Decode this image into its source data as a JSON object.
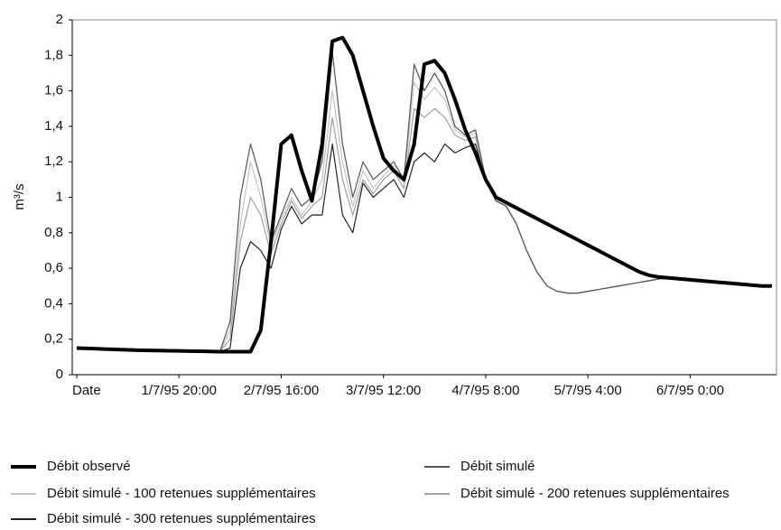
{
  "chart_data": {
    "type": "line",
    "y_label": "m³/s",
    "categories": [
      "Date",
      null,
      null,
      null,
      null,
      null,
      null,
      null,
      null,
      null,
      "1/7/95 20:00",
      null,
      null,
      null,
      null,
      null,
      null,
      null,
      null,
      null,
      "2/7/95 16:00",
      null,
      null,
      null,
      null,
      null,
      null,
      null,
      null,
      null,
      "3/7/95 12:00",
      null,
      null,
      null,
      null,
      null,
      null,
      null,
      null,
      null,
      "4/7/95 8:00",
      null,
      null,
      null,
      null,
      null,
      null,
      null,
      null,
      null,
      "5/7/95 4:00",
      null,
      null,
      null,
      null,
      null,
      null,
      null,
      null,
      null,
      "6/7/95 0:00",
      null,
      null,
      null,
      null,
      null,
      null,
      null,
      null
    ],
    "ylim": [
      0,
      2
    ],
    "yticks": [
      0,
      {
        "value": 0.2,
        "label": "0,2"
      },
      {
        "value": 0.4,
        "label": "0,4"
      },
      {
        "value": 0.6,
        "label": "0,6"
      },
      {
        "value": 0.8,
        "label": "0,8"
      },
      1,
      {
        "value": 1.2,
        "label": "1,2"
      },
      {
        "value": 1.4,
        "label": "1,4"
      },
      {
        "value": 1.6,
        "label": "1,6"
      },
      {
        "value": 1.8,
        "label": "1,8"
      },
      2
    ],
    "grid": false,
    "series": [
      {
        "name": "Débit observé",
        "color": "#000000",
        "width": 4,
        "values": [
          0.15,
          0.148,
          0.146,
          0.144,
          0.142,
          0.14,
          0.138,
          0.137,
          0.136,
          0.135,
          0.134,
          0.133,
          0.132,
          0.131,
          0.13,
          0.13,
          0.13,
          0.13,
          0.25,
          0.75,
          1.3,
          1.35,
          1.15,
          0.98,
          1.3,
          1.88,
          1.9,
          1.8,
          1.6,
          1.4,
          1.22,
          1.15,
          1.1,
          1.3,
          1.75,
          1.77,
          1.7,
          1.55,
          1.38,
          1.25,
          1.1,
          1.0,
          0.97,
          0.94,
          0.91,
          0.88,
          0.85,
          0.82,
          0.79,
          0.76,
          0.73,
          0.7,
          0.67,
          0.64,
          0.61,
          0.58,
          0.56,
          0.55,
          0.545,
          0.54,
          0.535,
          0.53,
          0.525,
          0.52,
          0.515,
          0.51,
          0.505,
          0.5,
          0.5
        ]
      },
      {
        "name": "Débit simulé",
        "color": "#555555",
        "width": 1.2,
        "values": [
          0.15,
          0.148,
          0.146,
          0.144,
          0.142,
          0.14,
          0.138,
          0.137,
          0.136,
          0.135,
          0.134,
          0.133,
          0.132,
          0.131,
          0.13,
          0.3,
          1.0,
          1.3,
          1.1,
          0.75,
          0.9,
          1.05,
          0.95,
          1.0,
          1.2,
          1.82,
          1.3,
          1.0,
          1.2,
          1.1,
          1.15,
          1.2,
          1.1,
          1.75,
          1.6,
          1.7,
          1.6,
          1.4,
          1.35,
          1.38,
          1.1,
          0.98,
          0.95,
          0.85,
          0.7,
          0.58,
          0.5,
          0.47,
          0.46,
          0.46,
          0.47,
          0.48,
          0.49,
          0.5,
          0.51,
          0.52,
          0.53,
          0.54,
          0.545,
          0.54,
          0.535,
          0.53,
          0.525,
          0.52,
          0.515,
          0.51,
          0.505,
          0.5,
          0.5
        ]
      },
      {
        "name": "Débit simulé - 100 retenues supplémentaires",
        "color": "#c4c4c4",
        "width": 1.2,
        "values": [
          0.15,
          0.148,
          0.146,
          0.144,
          0.142,
          0.14,
          0.138,
          0.137,
          0.136,
          0.135,
          0.134,
          0.133,
          0.132,
          0.131,
          0.13,
          0.25,
          0.85,
          1.2,
          1.0,
          0.72,
          0.88,
          1.0,
          0.9,
          0.98,
          1.1,
          1.6,
          1.2,
          0.95,
          1.15,
          1.05,
          1.12,
          1.18,
          1.08,
          1.65,
          1.55,
          1.62,
          1.55,
          1.38,
          1.34,
          1.36,
          1.1,
          0.98,
          0.95,
          0.85,
          0.7,
          0.58,
          0.5,
          0.47,
          0.46,
          0.46,
          0.47,
          0.48,
          0.49,
          0.5,
          0.51,
          0.52,
          0.53,
          0.54,
          0.545,
          0.54,
          0.535,
          0.53,
          0.525,
          0.52,
          0.515,
          0.51,
          0.505,
          0.5,
          0.5
        ]
      },
      {
        "name": "Débit simulé - 200 retenues supplémentaires",
        "color": "#a0a0a0",
        "width": 1.2,
        "values": [
          0.15,
          0.148,
          0.146,
          0.144,
          0.142,
          0.14,
          0.138,
          0.137,
          0.136,
          0.135,
          0.134,
          0.133,
          0.132,
          0.131,
          0.13,
          0.2,
          0.75,
          1.0,
          0.9,
          0.68,
          0.85,
          0.98,
          0.88,
          0.95,
          1.0,
          1.45,
          1.1,
          0.9,
          1.1,
          1.02,
          1.1,
          1.15,
          1.05,
          1.5,
          1.45,
          1.5,
          1.45,
          1.35,
          1.32,
          1.34,
          1.1,
          0.98,
          0.95,
          0.85,
          0.7,
          0.58,
          0.5,
          0.47,
          0.46,
          0.46,
          0.47,
          0.48,
          0.49,
          0.5,
          0.51,
          0.52,
          0.53,
          0.54,
          0.545,
          0.54,
          0.535,
          0.53,
          0.525,
          0.52,
          0.515,
          0.51,
          0.505,
          0.5,
          0.5
        ]
      },
      {
        "name": "Débit simulé - 300 retenues supplémentaires",
        "color": "#222222",
        "width": 1.2,
        "values": [
          0.15,
          0.148,
          0.146,
          0.144,
          0.142,
          0.14,
          0.138,
          0.137,
          0.136,
          0.135,
          0.134,
          0.133,
          0.132,
          0.131,
          0.13,
          0.15,
          0.6,
          0.75,
          0.7,
          0.6,
          0.82,
          0.95,
          0.85,
          0.9,
          0.9,
          1.3,
          0.9,
          0.8,
          1.08,
          1.0,
          1.05,
          1.1,
          1.0,
          1.2,
          1.25,
          1.2,
          1.3,
          1.25,
          1.28,
          1.3,
          1.1,
          0.98,
          0.95,
          0.85,
          0.7,
          0.58,
          0.5,
          0.47,
          0.46,
          0.46,
          0.47,
          0.48,
          0.49,
          0.5,
          0.51,
          0.52,
          0.53,
          0.54,
          0.545,
          0.54,
          0.535,
          0.53,
          0.525,
          0.52,
          0.515,
          0.51,
          0.505,
          0.5,
          0.5
        ]
      }
    ]
  }
}
